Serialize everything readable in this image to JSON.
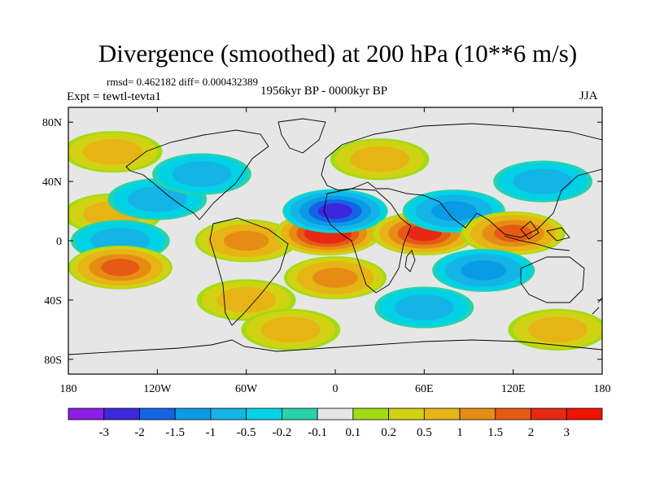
{
  "chart_data": {
    "type": "heatmap",
    "title": "Divergence (smoothed) at 200 hPa (10**6 m/s)",
    "stats_label": "rmsd= 0.462182 diff= 0.000432389",
    "experiment_label": "Expt = tewtl-tevta1",
    "period_label": "1956kyr BP - 0000kyr BP",
    "season_label": "JJA",
    "xlim": [
      -180,
      180
    ],
    "ylim": [
      -90,
      90
    ],
    "x_ticks": [
      {
        "value": -180,
        "label": "180"
      },
      {
        "value": -120,
        "label": "120W"
      },
      {
        "value": -60,
        "label": "60W"
      },
      {
        "value": 0,
        "label": "0"
      },
      {
        "value": 60,
        "label": "60E"
      },
      {
        "value": 120,
        "label": "120E"
      },
      {
        "value": 180,
        "label": "180"
      }
    ],
    "y_ticks": [
      {
        "value": 80,
        "label": "80N"
      },
      {
        "value": 40,
        "label": "40N"
      },
      {
        "value": 0,
        "label": "0"
      },
      {
        "value": -40,
        "label": "40S"
      },
      {
        "value": -80,
        "label": "80S"
      }
    ],
    "colorbar": {
      "labels": [
        "-3",
        "-2",
        "-1.5",
        "-1",
        "-0.5",
        "-0.2",
        "-0.1",
        "0.1",
        "0.2",
        "0.5",
        "1",
        "1.5",
        "2",
        "3"
      ],
      "colors": [
        "#8a1ee6",
        "#3c28dc",
        "#1464e6",
        "#0a9be6",
        "#14b4e6",
        "#00d2e6",
        "#28d2aa",
        "#e6e6e6",
        "#a0dc14",
        "#d2d214",
        "#e6b414",
        "#e68c14",
        "#e65a14",
        "#e62814",
        "#f01400"
      ]
    },
    "anomaly_centers": [
      {
        "lon": -150,
        "lat": 18,
        "value": 0.5
      },
      {
        "lon": -120,
        "lat": 28,
        "value": -0.5
      },
      {
        "lon": -145,
        "lat": 0,
        "value": -0.5
      },
      {
        "lon": -145,
        "lat": -18,
        "value": 1.5
      },
      {
        "lon": -60,
        "lat": 0,
        "value": 1.0
      },
      {
        "lon": -5,
        "lat": 5,
        "value": 2.5
      },
      {
        "lon": 0,
        "lat": 20,
        "value": -2.0
      },
      {
        "lon": 60,
        "lat": 5,
        "value": 2.0
      },
      {
        "lon": 80,
        "lat": 20,
        "value": -1.0
      },
      {
        "lon": 120,
        "lat": 5,
        "value": 1.5
      },
      {
        "lon": 100,
        "lat": -20,
        "value": -1.0
      },
      {
        "lon": 0,
        "lat": -25,
        "value": 1.0
      },
      {
        "lon": -90,
        "lat": 45,
        "value": -0.5
      },
      {
        "lon": 30,
        "lat": 55,
        "value": 0.5
      },
      {
        "lon": 140,
        "lat": 40,
        "value": -0.5
      },
      {
        "lon": -60,
        "lat": -40,
        "value": 0.5
      },
      {
        "lon": 60,
        "lat": -45,
        "value": -0.5
      },
      {
        "lon": -30,
        "lat": -60,
        "value": 0.5
      },
      {
        "lon": 150,
        "lat": -60,
        "value": 0.5
      },
      {
        "lon": -150,
        "lat": 60,
        "value": 0.5
      }
    ]
  }
}
